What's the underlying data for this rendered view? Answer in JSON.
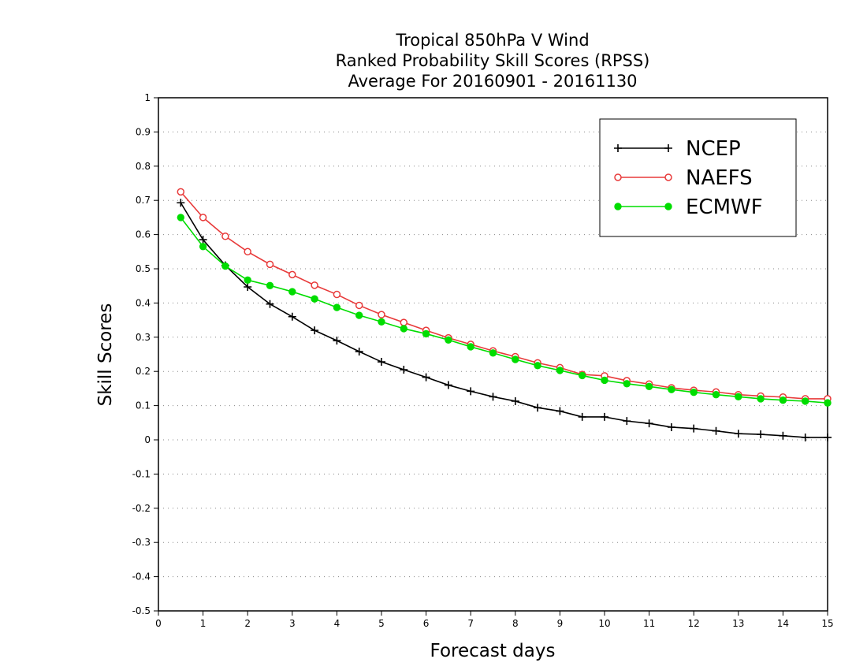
{
  "chart_data": {
    "type": "line",
    "title_lines": [
      "Tropical 850hPa V Wind",
      "Ranked Probability Skill Scores (RPSS)",
      "Average For 20160901 - 20161130"
    ],
    "xlabel": "Forecast days",
    "ylabel": "Skill Scores",
    "xlim": [
      0,
      15
    ],
    "ylim": [
      -0.5,
      1
    ],
    "x_ticks": [
      "0",
      "1",
      "2",
      "3",
      "4",
      "5",
      "6",
      "7",
      "8",
      "9",
      "10",
      "11",
      "12",
      "13",
      "14",
      "15"
    ],
    "y_ticks": [
      "-0.5",
      "-0.4",
      "-0.3",
      "-0.2",
      "-0.1",
      "0",
      "0.1",
      "0.2",
      "0.3",
      "0.4",
      "0.5",
      "0.6",
      "0.7",
      "0.8",
      "0.9",
      "1"
    ],
    "grid": true,
    "legend_position": "top-right",
    "x": [
      0.5,
      1,
      1.5,
      2,
      2.5,
      3,
      3.5,
      4,
      4.5,
      5,
      5.5,
      6,
      6.5,
      7,
      7.5,
      8,
      8.5,
      9,
      9.5,
      10,
      10.5,
      11,
      11.5,
      12,
      12.5,
      13,
      13.5,
      14,
      14.5,
      15
    ],
    "series": [
      {
        "name": "NCEP",
        "color": "#000000",
        "marker": "plus",
        "values": [
          0.693,
          0.585,
          0.51,
          0.447,
          0.397,
          0.36,
          0.32,
          0.29,
          0.258,
          0.228,
          0.205,
          0.183,
          0.16,
          0.142,
          0.126,
          0.113,
          0.094,
          0.084,
          0.067,
          0.067,
          0.055,
          0.048,
          0.037,
          0.033,
          0.026,
          0.018,
          0.016,
          0.012,
          0.007,
          0.007
        ]
      },
      {
        "name": "NAEFS",
        "color": "#e83a3a",
        "marker": "open-circle",
        "values": [
          0.725,
          0.65,
          0.595,
          0.55,
          0.513,
          0.483,
          0.452,
          0.425,
          0.393,
          0.366,
          0.343,
          0.32,
          0.298,
          0.279,
          0.26,
          0.243,
          0.225,
          0.211,
          0.191,
          0.187,
          0.173,
          0.163,
          0.152,
          0.145,
          0.14,
          0.132,
          0.128,
          0.125,
          0.12,
          0.12
        ]
      },
      {
        "name": "ECMWF",
        "color": "#00dd00",
        "marker": "filled-circle",
        "values": [
          0.65,
          0.565,
          0.508,
          0.467,
          0.451,
          0.433,
          0.412,
          0.387,
          0.364,
          0.345,
          0.325,
          0.31,
          0.292,
          0.272,
          0.254,
          0.235,
          0.217,
          0.203,
          0.188,
          0.174,
          0.164,
          0.156,
          0.147,
          0.139,
          0.132,
          0.126,
          0.12,
          0.116,
          0.113,
          0.108
        ]
      }
    ]
  }
}
